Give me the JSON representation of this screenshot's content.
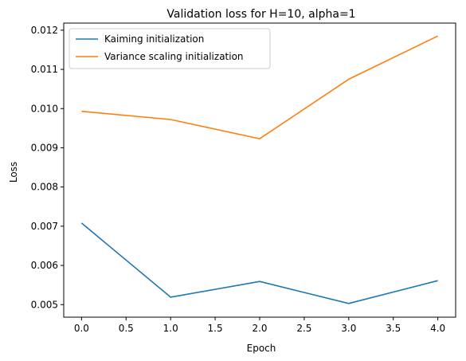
{
  "chart_data": {
    "type": "line",
    "title": "Validation loss for H=10, alpha=1",
    "xlabel": "Epoch",
    "ylabel": "Loss",
    "xlim": [
      -0.2,
      4.2
    ],
    "ylim": [
      0.00468,
      0.01218
    ],
    "xticks": [
      0.0,
      0.5,
      1.0,
      1.5,
      2.0,
      2.5,
      3.0,
      3.5,
      4.0
    ],
    "xtick_labels": [
      "0.0",
      "0.5",
      "1.0",
      "1.5",
      "2.0",
      "2.5",
      "3.0",
      "3.5",
      "4.0"
    ],
    "yticks": [
      0.005,
      0.006,
      0.007,
      0.008,
      0.009,
      0.01,
      0.011,
      0.012
    ],
    "ytick_labels": [
      "0.005",
      "0.006",
      "0.007",
      "0.008",
      "0.009",
      "0.010",
      "0.011",
      "0.012"
    ],
    "grid": false,
    "legend_position": "top-left",
    "x": [
      0,
      1,
      2,
      3,
      4
    ],
    "series": [
      {
        "name": "Kaiming initialization",
        "color": "#1f77b4",
        "values": [
          0.00708,
          0.00519,
          0.00559,
          0.00503,
          0.00561
        ]
      },
      {
        "name": "Variance scaling initialization",
        "color": "#ff7f0e",
        "values": [
          0.00993,
          0.00972,
          0.00923,
          0.01075,
          0.01185
        ]
      }
    ]
  }
}
